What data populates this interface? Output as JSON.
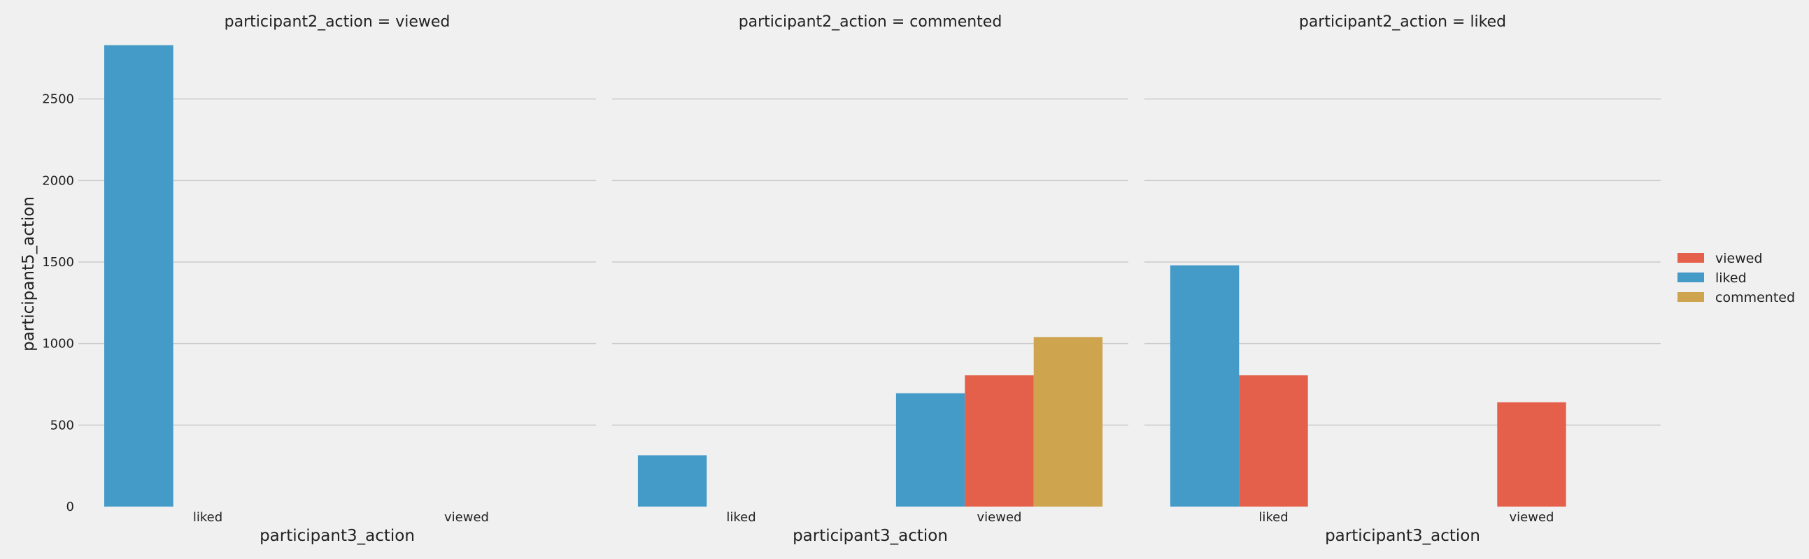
{
  "chart_data": {
    "type": "bar",
    "ylabel": "participant5_action",
    "ylim": [
      0,
      2850
    ],
    "yticks": [
      0,
      500,
      1000,
      1500,
      2000,
      2500
    ],
    "grid": true,
    "legend": {
      "placement": "right",
      "entries": [
        {
          "name": "viewed",
          "color": "#e5604a"
        },
        {
          "name": "liked",
          "color": "#459bc8"
        },
        {
          "name": "commented",
          "color": "#cfa44e"
        }
      ]
    },
    "hue_order": [
      "liked",
      "viewed",
      "commented"
    ],
    "facets": [
      {
        "title": "participant2_action = viewed",
        "xlabel": "participant3_action",
        "categories": [
          "liked",
          "viewed"
        ],
        "series": [
          {
            "name": "liked",
            "values": [
              2830,
              null
            ]
          },
          {
            "name": "viewed",
            "values": [
              null,
              null
            ]
          },
          {
            "name": "commented",
            "values": [
              null,
              null
            ]
          }
        ]
      },
      {
        "title": "participant2_action = commented",
        "xlabel": "participant3_action",
        "categories": [
          "liked",
          "viewed"
        ],
        "series": [
          {
            "name": "liked",
            "values": [
              315,
              695
            ]
          },
          {
            "name": "viewed",
            "values": [
              null,
              805
            ]
          },
          {
            "name": "commented",
            "values": [
              null,
              1040
            ]
          }
        ]
      },
      {
        "title": "participant2_action = liked",
        "xlabel": "participant3_action",
        "categories": [
          "liked",
          "viewed"
        ],
        "series": [
          {
            "name": "liked",
            "values": [
              1480,
              null
            ]
          },
          {
            "name": "viewed",
            "values": [
              805,
              640
            ]
          },
          {
            "name": "commented",
            "values": [
              null,
              null
            ]
          }
        ]
      }
    ]
  }
}
